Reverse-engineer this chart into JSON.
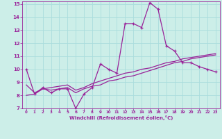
{
  "xlabel": "Windchill (Refroidissement éolien,°C)",
  "bg_color": "#cceee8",
  "grid_color": "#aadddd",
  "line_color": "#992299",
  "xlim": [
    -0.5,
    23.5
  ],
  "ylim": [
    7,
    15.2
  ],
  "xticks": [
    0,
    1,
    2,
    3,
    4,
    5,
    6,
    7,
    8,
    9,
    10,
    11,
    12,
    13,
    14,
    15,
    16,
    17,
    18,
    19,
    20,
    21,
    22,
    23
  ],
  "yticks": [
    7,
    8,
    9,
    10,
    11,
    12,
    13,
    14,
    15
  ],
  "line1_x": [
    0,
    1,
    2,
    3,
    4,
    5,
    6,
    7,
    8,
    9,
    10,
    11,
    12,
    13,
    14,
    15,
    16,
    17,
    18,
    19,
    20,
    21,
    22,
    23
  ],
  "line1_y": [
    10.0,
    8.1,
    8.6,
    8.2,
    8.5,
    8.5,
    7.0,
    8.1,
    8.6,
    10.4,
    10.0,
    9.7,
    13.5,
    13.5,
    13.2,
    15.1,
    14.6,
    11.8,
    11.4,
    10.5,
    10.5,
    10.2,
    10.0,
    9.8
  ],
  "line2_x": [
    0,
    1,
    2,
    3,
    4,
    5,
    6,
    7,
    8,
    9,
    10,
    11,
    12,
    13,
    14,
    15,
    16,
    17,
    18,
    19,
    20,
    21,
    22,
    23
  ],
  "line2_y": [
    8.0,
    8.1,
    8.5,
    8.4,
    8.5,
    8.6,
    8.2,
    8.5,
    8.7,
    8.8,
    9.1,
    9.2,
    9.4,
    9.5,
    9.7,
    9.9,
    10.1,
    10.3,
    10.5,
    10.6,
    10.8,
    10.9,
    11.0,
    11.1
  ],
  "line3_x": [
    0,
    1,
    2,
    3,
    4,
    5,
    6,
    7,
    8,
    9,
    10,
    11,
    12,
    13,
    14,
    15,
    16,
    17,
    18,
    19,
    20,
    21,
    22,
    23
  ],
  "line3_y": [
    8.8,
    8.2,
    8.5,
    8.6,
    8.7,
    8.8,
    8.4,
    8.6,
    8.9,
    9.1,
    9.3,
    9.5,
    9.7,
    9.8,
    10.0,
    10.1,
    10.3,
    10.5,
    10.6,
    10.8,
    10.9,
    11.0,
    11.1,
    11.2
  ]
}
